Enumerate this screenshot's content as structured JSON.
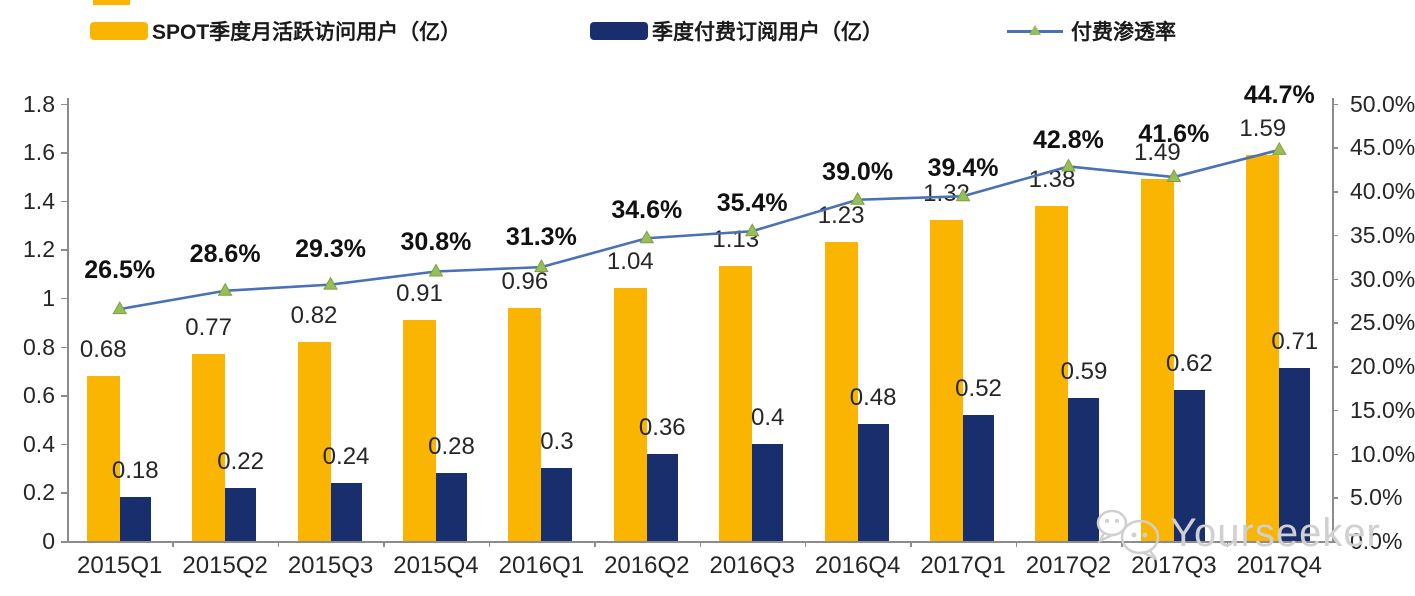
{
  "legend": {
    "items": [
      {
        "label": "SPOT季度月活跃访问用户（亿）",
        "swatch": "bar",
        "color_key": "mau"
      },
      {
        "label": "季度付费订阅用户（亿）",
        "swatch": "bar",
        "color_key": "subs"
      },
      {
        "label": "付费渗透率",
        "swatch": "line",
        "color_key": "line"
      }
    ]
  },
  "colors": {
    "mau": "#F9B502",
    "subs": "#182E6D",
    "line": "#4A70B5",
    "marker_fill": "#97BE58",
    "marker_edge": "#7FA03F",
    "axis": "#8C8C8C",
    "watermark": "#D0D0D0"
  },
  "watermark": {
    "text": "Yourseeker",
    "icon": "wechat-icon"
  },
  "chart_data": {
    "type": "bar+line",
    "categories": [
      "2015Q1",
      "2015Q2",
      "2015Q3",
      "2015Q4",
      "2016Q1",
      "2016Q2",
      "2016Q3",
      "2016Q4",
      "2017Q1",
      "2017Q2",
      "2017Q3",
      "2017Q4"
    ],
    "series": [
      {
        "name": "SPOT季度月活跃访问用户（亿）",
        "type": "bar",
        "axis": "left",
        "values": [
          0.68,
          0.77,
          0.82,
          0.91,
          0.96,
          1.04,
          1.13,
          1.23,
          1.32,
          1.38,
          1.49,
          1.59
        ],
        "labels": [
          "0.68",
          "0.77",
          "0.82",
          "0.91",
          "0.96",
          "1.04",
          "1.13",
          "1.23",
          "1.32",
          "1.38",
          "1.49",
          "1.59"
        ]
      },
      {
        "name": "季度付费订阅用户（亿）",
        "type": "bar",
        "axis": "left",
        "values": [
          0.18,
          0.22,
          0.24,
          0.28,
          0.3,
          0.36,
          0.4,
          0.48,
          0.52,
          0.59,
          0.62,
          0.71
        ],
        "labels": [
          "0.18",
          "0.22",
          "0.24",
          "0.28",
          "0.3",
          "0.36",
          "0.4",
          "0.48",
          "0.52",
          "0.59",
          "0.62",
          "0.71"
        ]
      },
      {
        "name": "付费渗透率",
        "type": "line",
        "axis": "right",
        "values": [
          26.5,
          28.6,
          29.3,
          30.8,
          31.3,
          34.6,
          35.4,
          39.0,
          39.4,
          42.8,
          41.6,
          44.7
        ],
        "labels": [
          "26.5%",
          "28.6%",
          "29.3%",
          "30.8%",
          "31.3%",
          "34.6%",
          "35.4%",
          "39.0%",
          "39.4%",
          "42.8%",
          "41.6%",
          "44.7%"
        ]
      }
    ],
    "left_axis": {
      "min": 0,
      "max": 1.8,
      "step": 0.2,
      "ticks": [
        "1.8",
        "1.6",
        "1.4",
        "1.2",
        "1",
        "0.8",
        "0.6",
        "0.4",
        "0.2",
        "0"
      ]
    },
    "right_axis": {
      "min": 0,
      "max": 50,
      "step": 5,
      "ticks": [
        "50.0%",
        "45.0%",
        "40.0%",
        "35.0%",
        "30.0%",
        "25.0%",
        "20.0%",
        "15.0%",
        "10.0%",
        "5.0%",
        "0.0%"
      ]
    },
    "grid": false,
    "legend_position": "top",
    "title": ""
  }
}
